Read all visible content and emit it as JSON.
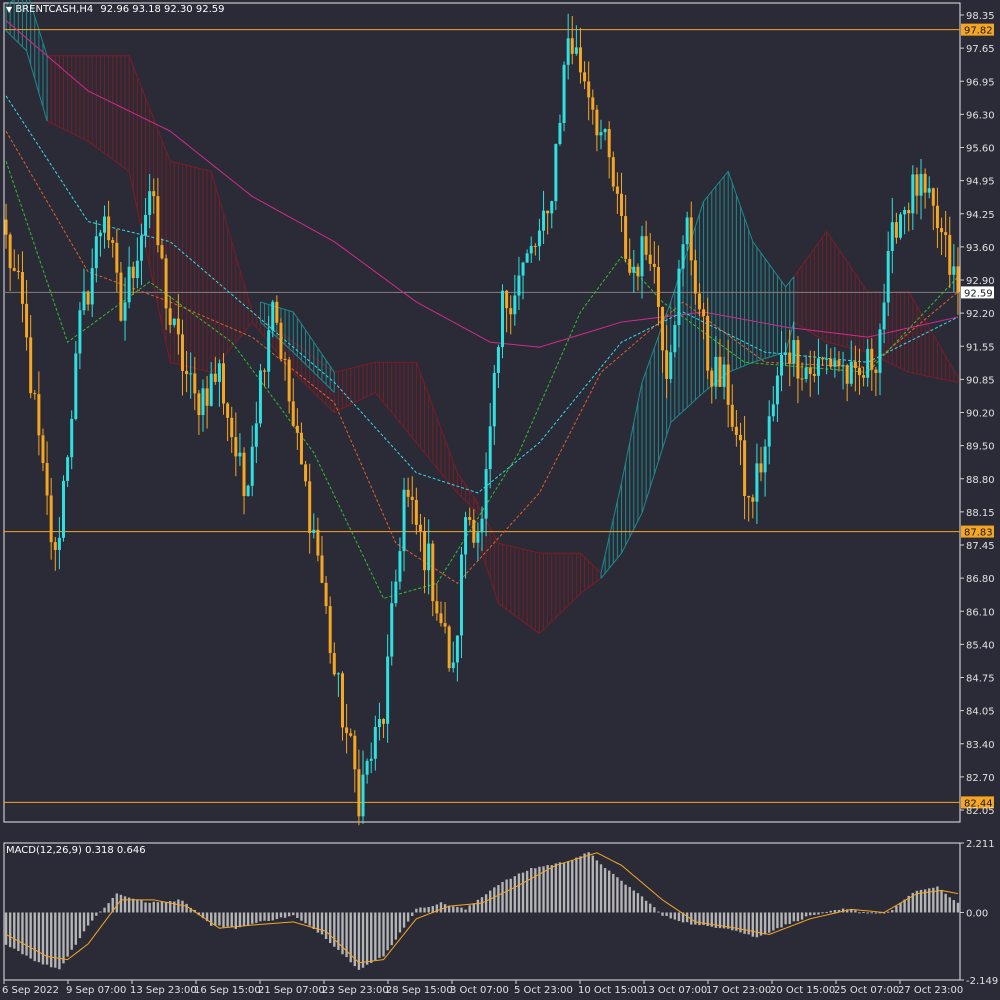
{
  "header": {
    "symbol": "BRENTCASH,H4",
    "ohlc": "92.96 93.18 92.30 92.59"
  },
  "macd_header": "MACD(12,26,9) 0.318 0.646",
  "colors": {
    "background": "#2b2b38",
    "bull": "#2fe0e0",
    "bear": "#f5a623",
    "hline": "#f5a623",
    "cloud_red": "#7a1d24",
    "cloud_teal": "#1e8a8c",
    "ma_pink": "#d02a8c",
    "ma_cyan": "#38d8e8",
    "ma_orange": "#e0602a",
    "ma_green": "#30c030",
    "macd_hist": "#b4b4b4",
    "macd_signal": "#f5a623"
  },
  "chart_data": [
    {
      "type": "candlestick",
      "ylim": [
        82.05,
        98.35
      ],
      "y_ticks": [
        "98.35",
        "97.65",
        "96.95",
        "96.30",
        "95.60",
        "94.95",
        "94.25",
        "93.60",
        "92.90",
        "92.20",
        "91.55",
        "90.85",
        "90.20",
        "89.50",
        "88.80",
        "88.15",
        "87.45",
        "86.80",
        "86.10",
        "85.40",
        "84.75",
        "84.05",
        "83.40",
        "82.70",
        "82.05"
      ],
      "x_ticks": [
        "6 Sep 2022",
        "9 Sep 07:00",
        "13 Sep 23:00",
        "16 Sep 15:00",
        "21 Sep 07:00",
        "23 Sep 23:00",
        "28 Sep 15:00",
        "3 Oct 07:00",
        "5 Oct 23:00",
        "10 Oct 15:00",
        "13 Oct 07:00",
        "17 Oct 23:00",
        "20 Oct 15:00",
        "25 Oct 07:00",
        "27 Oct 23:00"
      ],
      "current_price": "92.59",
      "horizontal_levels": [
        "97.82",
        "87.83",
        "82.44"
      ],
      "anchors": [
        {
          "i": 0,
          "p": 93.6
        },
        {
          "i": 4,
          "p": 92.2
        },
        {
          "i": 9,
          "p": 88.9
        },
        {
          "i": 12,
          "p": 87.2
        },
        {
          "i": 18,
          "p": 91.9
        },
        {
          "i": 24,
          "p": 94.3
        },
        {
          "i": 28,
          "p": 92.1
        },
        {
          "i": 35,
          "p": 94.6
        },
        {
          "i": 40,
          "p": 92.0
        },
        {
          "i": 46,
          "p": 90.4
        },
        {
          "i": 52,
          "p": 91.0
        },
        {
          "i": 58,
          "p": 88.6
        },
        {
          "i": 65,
          "p": 92.6
        },
        {
          "i": 70,
          "p": 89.9
        },
        {
          "i": 76,
          "p": 87.4
        },
        {
          "i": 80,
          "p": 85.0
        },
        {
          "i": 86,
          "p": 82.6
        },
        {
          "i": 92,
          "p": 84.2
        },
        {
          "i": 97,
          "p": 88.6
        },
        {
          "i": 103,
          "p": 87.2
        },
        {
          "i": 109,
          "p": 84.9
        },
        {
          "i": 112,
          "p": 88.2
        },
        {
          "i": 116,
          "p": 87.9
        },
        {
          "i": 121,
          "p": 92.3
        },
        {
          "i": 127,
          "p": 93.2
        },
        {
          "i": 132,
          "p": 94.0
        },
        {
          "i": 137,
          "p": 97.7
        },
        {
          "i": 142,
          "p": 96.7
        },
        {
          "i": 147,
          "p": 95.1
        },
        {
          "i": 152,
          "p": 93.0
        },
        {
          "i": 157,
          "p": 93.6
        },
        {
          "i": 161,
          "p": 91.2
        },
        {
          "i": 166,
          "p": 93.9
        },
        {
          "i": 171,
          "p": 91.2
        },
        {
          "i": 176,
          "p": 90.6
        },
        {
          "i": 181,
          "p": 88.3
        },
        {
          "i": 185,
          "p": 89.5
        },
        {
          "i": 190,
          "p": 91.6
        },
        {
          "i": 196,
          "p": 91.0
        },
        {
          "i": 202,
          "p": 91.3
        },
        {
          "i": 207,
          "p": 90.7
        },
        {
          "i": 212,
          "p": 91.4
        },
        {
          "i": 217,
          "p": 94.1
        },
        {
          "i": 222,
          "p": 94.7
        },
        {
          "i": 227,
          "p": 93.9
        },
        {
          "i": 232,
          "p": 92.59
        }
      ],
      "candle_count": 233,
      "moving_averages": [
        {
          "color": "#d02a8c",
          "dash": false,
          "points": [
            [
              0,
              98.0
            ],
            [
              20,
              96.6
            ],
            [
              40,
              95.8
            ],
            [
              60,
              94.5
            ],
            [
              80,
              93.6
            ],
            [
              100,
              92.4
            ],
            [
              118,
              91.6
            ],
            [
              130,
              91.5
            ],
            [
              150,
              92.0
            ],
            [
              170,
              92.2
            ],
            [
              190,
              91.9
            ],
            [
              210,
              91.7
            ],
            [
              232,
              92.1
            ]
          ]
        },
        {
          "color": "#38d8e8",
          "dash": true,
          "points": [
            [
              0,
              96.5
            ],
            [
              20,
              94.0
            ],
            [
              40,
              93.6
            ],
            [
              60,
              92.2
            ],
            [
              80,
              90.8
            ],
            [
              100,
              89.0
            ],
            [
              115,
              88.6
            ],
            [
              130,
              89.6
            ],
            [
              150,
              91.6
            ],
            [
              165,
              92.2
            ],
            [
              185,
              91.4
            ],
            [
              210,
              91.2
            ],
            [
              232,
              92.1
            ]
          ]
        },
        {
          "color": "#e0602a",
          "dash": true,
          "points": [
            [
              0,
              95.8
            ],
            [
              20,
              93.0
            ],
            [
              40,
              92.4
            ],
            [
              60,
              91.7
            ],
            [
              80,
              90.4
            ],
            [
              95,
              87.6
            ],
            [
              110,
              86.8
            ],
            [
              130,
              88.6
            ],
            [
              145,
              91.0
            ],
            [
              165,
              92.4
            ],
            [
              185,
              91.2
            ],
            [
              210,
              91.1
            ],
            [
              232,
              92.6
            ]
          ]
        },
        {
          "color": "#30c030",
          "dash": true,
          "points": [
            [
              0,
              95.2
            ],
            [
              15,
              91.6
            ],
            [
              35,
              92.8
            ],
            [
              55,
              91.6
            ],
            [
              75,
              89.4
            ],
            [
              92,
              86.5
            ],
            [
              105,
              86.8
            ],
            [
              125,
              89.4
            ],
            [
              140,
              92.2
            ],
            [
              150,
              93.3
            ],
            [
              160,
              92.4
            ],
            [
              180,
              91.2
            ],
            [
              210,
              91.0
            ],
            [
              232,
              92.9
            ]
          ]
        }
      ],
      "ichimoku": {
        "red_clouds": [
          {
            "top": [
              [
                10,
                97.3
              ],
              [
                30,
                97.3
              ],
              [
                40,
                95.2
              ],
              [
                50,
                95.0
              ],
              [
                60,
                92.2
              ],
              [
                70,
                91.6
              ],
              [
                80,
                91.0
              ],
              [
                90,
                91.2
              ],
              [
                100,
                91.2
              ],
              [
                110,
                89.0
              ],
              [
                115,
                88.4
              ]
            ],
            "bottom": [
              [
                10,
                96.0
              ],
              [
                20,
                95.6
              ],
              [
                30,
                95.0
              ],
              [
                40,
                91.2
              ],
              [
                50,
                91.0
              ],
              [
                60,
                92.0
              ],
              [
                70,
                91.0
              ],
              [
                80,
                90.2
              ],
              [
                90,
                90.6
              ],
              [
                100,
                89.6
              ],
              [
                110,
                88.6
              ],
              [
                115,
                88.2
              ]
            ]
          },
          {
            "top": [
              [
                114,
                88.5
              ],
              [
                120,
                87.6
              ],
              [
                130,
                87.4
              ],
              [
                140,
                87.4
              ],
              [
                145,
                87.0
              ]
            ],
            "bottom": [
              [
                114,
                87.9
              ],
              [
                120,
                86.4
              ],
              [
                130,
                85.8
              ],
              [
                140,
                86.6
              ],
              [
                145,
                86.9
              ]
            ]
          },
          {
            "top": [
              [
                192,
                92.9
              ],
              [
                200,
                93.8
              ],
              [
                210,
                92.6
              ],
              [
                220,
                92.6
              ],
              [
                232,
                90.9
              ]
            ],
            "bottom": [
              [
                192,
                92.0
              ],
              [
                200,
                91.6
              ],
              [
                210,
                91.4
              ],
              [
                220,
                91.0
              ],
              [
                232,
                90.8
              ]
            ]
          }
        ],
        "teal_clouds": [
          {
            "top": [
              [
                0,
                98.3
              ],
              [
                5,
                98.6
              ],
              [
                10,
                97.3
              ]
            ],
            "bottom": [
              [
                0,
                97.8
              ],
              [
                5,
                97.4
              ],
              [
                10,
                96.0
              ]
            ]
          },
          {
            "top": [
              [
                62,
                92.4
              ],
              [
                70,
                92.2
              ],
              [
                80,
                91.0
              ]
            ],
            "bottom": [
              [
                62,
                92.0
              ],
              [
                70,
                91.4
              ],
              [
                80,
                90.6
              ]
            ]
          },
          {
            "top": [
              [
                145,
                87.0
              ],
              [
                150,
                88.8
              ],
              [
                155,
                90.8
              ],
              [
                162,
                92.4
              ],
              [
                170,
                94.4
              ],
              [
                176,
                95.0
              ],
              [
                182,
                93.6
              ],
              [
                190,
                92.7
              ],
              [
                192,
                92.9
              ]
            ],
            "bottom": [
              [
                145,
                86.9
              ],
              [
                150,
                87.4
              ],
              [
                155,
                88.2
              ],
              [
                162,
                90.0
              ],
              [
                170,
                90.6
              ],
              [
                176,
                91.0
              ],
              [
                182,
                91.2
              ],
              [
                190,
                91.4
              ],
              [
                192,
                92.0
              ]
            ]
          }
        ]
      }
    },
    {
      "type": "histogram",
      "name": "MACD(12,26,9)",
      "ylim": [
        -2.149,
        2.211
      ],
      "y_ticks": [
        "2.211",
        "0.00",
        "-2.149"
      ],
      "hist_anchors": [
        {
          "i": 0,
          "v": -1.0
        },
        {
          "i": 8,
          "v": -1.6
        },
        {
          "i": 13,
          "v": -1.8
        },
        {
          "i": 20,
          "v": -0.4
        },
        {
          "i": 27,
          "v": 0.6
        },
        {
          "i": 35,
          "v": 0.3
        },
        {
          "i": 43,
          "v": 0.4
        },
        {
          "i": 50,
          "v": -0.4
        },
        {
          "i": 56,
          "v": -0.5
        },
        {
          "i": 62,
          "v": -0.3
        },
        {
          "i": 70,
          "v": -0.1
        },
        {
          "i": 77,
          "v": -0.7
        },
        {
          "i": 86,
          "v": -1.8
        },
        {
          "i": 92,
          "v": -1.4
        },
        {
          "i": 100,
          "v": 0.1
        },
        {
          "i": 106,
          "v": 0.3
        },
        {
          "i": 112,
          "v": 0.1
        },
        {
          "i": 120,
          "v": 0.9
        },
        {
          "i": 128,
          "v": 1.4
        },
        {
          "i": 136,
          "v": 1.6
        },
        {
          "i": 142,
          "v": 1.9
        },
        {
          "i": 148,
          "v": 1.2
        },
        {
          "i": 156,
          "v": 0.4
        },
        {
          "i": 160,
          "v": -0.1
        },
        {
          "i": 168,
          "v": -0.4
        },
        {
          "i": 176,
          "v": -0.5
        },
        {
          "i": 183,
          "v": -0.8
        },
        {
          "i": 188,
          "v": -0.5
        },
        {
          "i": 196,
          "v": -0.1
        },
        {
          "i": 204,
          "v": 0.1
        },
        {
          "i": 210,
          "v": 0.0
        },
        {
          "i": 215,
          "v": 0.0
        },
        {
          "i": 222,
          "v": 0.7
        },
        {
          "i": 227,
          "v": 0.8
        },
        {
          "i": 232,
          "v": 0.3
        }
      ],
      "signal_points": [
        [
          0,
          -0.7
        ],
        [
          10,
          -1.4
        ],
        [
          15,
          -1.5
        ],
        [
          20,
          -1.0
        ],
        [
          28,
          0.4
        ],
        [
          36,
          0.4
        ],
        [
          44,
          0.2
        ],
        [
          52,
          -0.5
        ],
        [
          60,
          -0.4
        ],
        [
          70,
          -0.3
        ],
        [
          78,
          -0.6
        ],
        [
          86,
          -1.6
        ],
        [
          92,
          -1.5
        ],
        [
          100,
          -0.2
        ],
        [
          108,
          0.2
        ],
        [
          116,
          0.3
        ],
        [
          124,
          0.8
        ],
        [
          134,
          1.5
        ],
        [
          144,
          1.9
        ],
        [
          150,
          1.5
        ],
        [
          160,
          0.4
        ],
        [
          168,
          -0.3
        ],
        [
          178,
          -0.5
        ],
        [
          186,
          -0.7
        ],
        [
          196,
          -0.2
        ],
        [
          206,
          0.1
        ],
        [
          214,
          0.0
        ],
        [
          222,
          0.6
        ],
        [
          228,
          0.7
        ],
        [
          232,
          0.6
        ]
      ]
    }
  ]
}
